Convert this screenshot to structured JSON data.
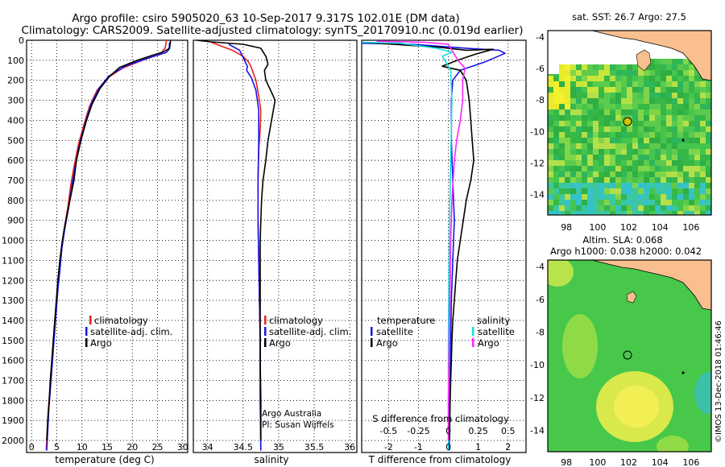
{
  "header": {
    "title_line1": "Argo profile: csiro 5905020_63 10-Sep-2017 9.317S 102.01E (DM data)",
    "title_line2": "Climatology: CARS2009. Satellite-adjusted climatology: synTS_20170910.nc (0.019d earlier)"
  },
  "colors": {
    "climatology": "#e8201c",
    "satellite": "#1414e6",
    "argo": "#000000",
    "sat_salinity": "#16dede",
    "argo_salinity": "#ff22ff",
    "land": "#f9bf8f",
    "sst_green": "#3fbf4a",
    "sla_green": "#47c84a"
  },
  "chart_data": [
    {
      "id": "temperature",
      "type": "line",
      "xlabel": "temperature (deg C)",
      "ylabel": "",
      "xlim": [
        -1,
        31
      ],
      "ylim": [
        2060,
        0
      ],
      "x_ticks": [
        "0",
        "5",
        "10",
        "15",
        "20",
        "25",
        "30"
      ],
      "y_ticks": [
        "0",
        "100",
        "200",
        "300",
        "400",
        "500",
        "600",
        "700",
        "800",
        "900",
        "1000",
        "1100",
        "1200",
        "1300",
        "1400",
        "1500",
        "1600",
        "1700",
        "1800",
        "1900",
        "2000"
      ],
      "legend": [
        "climatology",
        "satellite-adj. clim.",
        "Argo"
      ],
      "series": [
        {
          "key": "climatology",
          "points": [
            [
              26.8,
              0
            ],
            [
              26.5,
              40
            ],
            [
              25.5,
              70
            ],
            [
              22,
              100
            ],
            [
              18,
              140
            ],
            [
              15,
              190
            ],
            [
              13,
              250
            ],
            [
              11.5,
              330
            ],
            [
              10.4,
              420
            ],
            [
              9.3,
              520
            ],
            [
              8.5,
              620
            ],
            [
              7.8,
              720
            ],
            [
              7.1,
              850
            ],
            [
              6.4,
              950
            ],
            [
              5.9,
              1050
            ],
            [
              5.5,
              1150
            ],
            [
              5.1,
              1250
            ],
            [
              4.8,
              1350
            ],
            [
              4.5,
              1450
            ],
            [
              4.2,
              1550
            ],
            [
              3.9,
              1650
            ],
            [
              3.6,
              1750
            ],
            [
              3.3,
              1850
            ],
            [
              3.1,
              1950
            ],
            [
              2.9,
              2050
            ]
          ]
        },
        {
          "key": "satellite",
          "points": [
            [
              27.4,
              10
            ],
            [
              27.3,
              45
            ],
            [
              26.7,
              62
            ],
            [
              23,
              90
            ],
            [
              18.5,
              130
            ],
            [
              15.3,
              180
            ],
            [
              13.4,
              240
            ],
            [
              11.8,
              320
            ],
            [
              10.7,
              410
            ],
            [
              9.6,
              510
            ],
            [
              8.8,
              610
            ],
            [
              8.1,
              710
            ],
            [
              7.4,
              830
            ],
            [
              6.6,
              940
            ],
            [
              6.0,
              1040
            ],
            [
              5.6,
              1150
            ],
            [
              5.2,
              1250
            ],
            [
              4.9,
              1350
            ],
            [
              4.6,
              1450
            ],
            [
              4.3,
              1550
            ],
            [
              4.0,
              1650
            ],
            [
              3.7,
              1750
            ],
            [
              3.4,
              1850
            ],
            [
              3.2,
              1950
            ],
            [
              3.0,
              2050
            ]
          ]
        },
        {
          "key": "argo",
          "points": [
            [
              27.6,
              0
            ],
            [
              27.4,
              40
            ],
            [
              26.2,
              58
            ],
            [
              24,
              75
            ],
            [
              21,
              100
            ],
            [
              17.5,
              135
            ],
            [
              15.5,
              180
            ],
            [
              13.6,
              240
            ],
            [
              12.0,
              320
            ],
            [
              10.9,
              400
            ],
            [
              9.8,
              500
            ],
            [
              8.9,
              600
            ],
            [
              8.4,
              700
            ],
            [
              7.6,
              800
            ],
            [
              6.8,
              900
            ],
            [
              6.1,
              1000
            ],
            [
              5.6,
              1100
            ],
            [
              5.2,
              1200
            ],
            [
              4.9,
              1300
            ],
            [
              4.6,
              1400
            ],
            [
              4.3,
              1500
            ],
            [
              4.0,
              1600
            ],
            [
              3.7,
              1700
            ],
            [
              3.5,
              1800
            ],
            [
              3.2,
              1900
            ],
            [
              3.0,
              2000
            ]
          ]
        }
      ]
    },
    {
      "id": "salinity",
      "type": "line",
      "xlabel": "salinity",
      "xlim": [
        33.8,
        36.1
      ],
      "ylim": [
        2060,
        0
      ],
      "x_ticks": [
        "34",
        "34.5",
        "35",
        "35.5",
        "36"
      ],
      "legend": [
        "climatology",
        "satellite-adj. clim.",
        "Argo"
      ],
      "annotations": [
        "Argo Australia",
        "PI: Susan Wijffels"
      ],
      "series": [
        {
          "key": "climatology",
          "points": [
            [
              34.05,
              10
            ],
            [
              34.2,
              30
            ],
            [
              34.35,
              50
            ],
            [
              34.5,
              80
            ],
            [
              34.58,
              110
            ],
            [
              34.62,
              140
            ],
            [
              34.68,
              200
            ],
            [
              34.72,
              280
            ],
            [
              34.75,
              350
            ],
            [
              34.74,
              450
            ],
            [
              34.72,
              550
            ],
            [
              34.71,
              700
            ],
            [
              34.71,
              900
            ],
            [
              34.72,
              1100
            ],
            [
              34.73,
              1300
            ],
            [
              34.74,
              1500
            ],
            [
              34.74,
              1800
            ],
            [
              34.75,
              2050
            ]
          ]
        },
        {
          "key": "satellite",
          "points": [
            [
              34.3,
              20
            ],
            [
              34.45,
              50
            ],
            [
              34.52,
              100
            ],
            [
              34.56,
              130
            ],
            [
              34.55,
              150
            ],
            [
              34.62,
              190
            ],
            [
              34.68,
              250
            ],
            [
              34.72,
              350
            ],
            [
              34.72,
              500
            ],
            [
              34.71,
              700
            ],
            [
              34.71,
              900
            ],
            [
              34.72,
              1100
            ],
            [
              34.73,
              1300
            ],
            [
              34.74,
              1500
            ],
            [
              34.74,
              1800
            ],
            [
              34.75,
              2050
            ]
          ]
        },
        {
          "key": "argo",
          "points": [
            [
              33.85,
              0
            ],
            [
              34.05,
              8
            ],
            [
              34.5,
              20
            ],
            [
              34.75,
              40
            ],
            [
              34.82,
              80
            ],
            [
              34.85,
              120
            ],
            [
              34.8,
              150
            ],
            [
              34.82,
              200
            ],
            [
              34.9,
              260
            ],
            [
              34.95,
              300
            ],
            [
              34.9,
              400
            ],
            [
              34.85,
              500
            ],
            [
              34.82,
              600
            ],
            [
              34.78,
              700
            ],
            [
              34.76,
              800
            ],
            [
              34.75,
              900
            ],
            [
              34.74,
              1000
            ],
            [
              34.74,
              1200
            ],
            [
              34.74,
              1400
            ],
            [
              34.74,
              1600
            ],
            [
              34.75,
              1800
            ],
            [
              34.75,
              2000
            ]
          ]
        }
      ]
    },
    {
      "id": "difference",
      "type": "line",
      "xlabel": "T difference from climatology",
      "top_xlabel": "S difference from climatology",
      "xlim": [
        -2.9,
        2.6
      ],
      "top_xlim": [
        -0.725,
        0.65
      ],
      "ylim": [
        2060,
        0
      ],
      "x_ticks": [
        "-2",
        "-1",
        "0",
        "1",
        "2"
      ],
      "top_ticks": [
        "-0.5",
        "-0.25",
        "0",
        "0.25",
        "0.5"
      ],
      "legend_groups": [
        {
          "title": "temperature",
          "items": [
            "satellite",
            "Argo"
          ]
        },
        {
          "title": "salinity",
          "items": [
            "satellite",
            "Argo"
          ]
        }
      ],
      "series": [
        {
          "key": "t_satellite",
          "points": [
            [
              -2.9,
              15
            ],
            [
              -1.2,
              20
            ],
            [
              0.6,
              40
            ],
            [
              1.7,
              50
            ],
            [
              1.9,
              65
            ],
            [
              1.2,
              110
            ],
            [
              0.4,
              150
            ],
            [
              0.15,
              200
            ],
            [
              0.1,
              300
            ],
            [
              0.1,
              500
            ],
            [
              0.15,
              700
            ],
            [
              0.2,
              900
            ],
            [
              0.15,
              1100
            ],
            [
              0.1,
              1300
            ],
            [
              0.08,
              1500
            ],
            [
              0.05,
              1800
            ],
            [
              0.03,
              2050
            ]
          ]
        },
        {
          "key": "t_argo",
          "points": [
            [
              -2.9,
              10
            ],
            [
              -0.3,
              35
            ],
            [
              0.6,
              50
            ],
            [
              1.5,
              45
            ],
            [
              0.9,
              70
            ],
            [
              0.3,
              100
            ],
            [
              -0.2,
              130
            ],
            [
              0.4,
              150
            ],
            [
              0.6,
              200
            ],
            [
              0.7,
              300
            ],
            [
              0.75,
              400
            ],
            [
              0.8,
              500
            ],
            [
              0.85,
              600
            ],
            [
              0.75,
              700
            ],
            [
              0.6,
              800
            ],
            [
              0.5,
              900
            ],
            [
              0.4,
              1000
            ],
            [
              0.3,
              1100
            ],
            [
              0.25,
              1200
            ],
            [
              0.2,
              1300
            ],
            [
              0.15,
              1400
            ],
            [
              0.12,
              1500
            ],
            [
              0.1,
              1600
            ],
            [
              0.08,
              1700
            ],
            [
              0.06,
              1800
            ],
            [
              0.05,
              1900
            ],
            [
              0.04,
              2000
            ]
          ]
        },
        {
          "key": "s_satellite",
          "points": [
            [
              -0.725,
              10
            ],
            [
              -0.4,
              15
            ],
            [
              -0.1,
              40
            ],
            [
              0.03,
              60
            ],
            [
              -0.05,
              80
            ],
            [
              0.02,
              150
            ],
            [
              0.03,
              300
            ],
            [
              0.02,
              600
            ],
            [
              0.01,
              900
            ],
            [
              0.005,
              1200
            ],
            [
              0.0,
              1500
            ],
            [
              0.0,
              1800
            ],
            [
              0.0,
              2050
            ]
          ]
        },
        {
          "key": "s_argo",
          "points": [
            [
              -0.6,
              5
            ],
            [
              -0.2,
              10
            ],
            [
              0.0,
              20
            ],
            [
              0.08,
              100
            ],
            [
              0.14,
              140
            ],
            [
              0.12,
              200
            ],
            [
              0.12,
              300
            ],
            [
              0.1,
              400
            ],
            [
              0.07,
              500
            ],
            [
              0.05,
              600
            ],
            [
              0.04,
              700
            ],
            [
              0.03,
              800
            ],
            [
              0.02,
              1000
            ],
            [
              0.015,
              1200
            ],
            [
              0.01,
              1400
            ],
            [
              0.005,
              1600
            ],
            [
              0.0,
              1800
            ],
            [
              0.0,
              2000
            ]
          ]
        }
      ]
    },
    {
      "id": "sst_map",
      "type": "heatmap",
      "title": "sat. SST: 26.7 Argo: 27.5",
      "xlim": [
        96.8,
        107.3
      ],
      "ylim": [
        -15.3,
        -3.6
      ],
      "x_ticks": [
        "98",
        "100",
        "102",
        "104",
        "106"
      ],
      "y_ticks": [
        "-4",
        "-6",
        "-8",
        "-10",
        "-12",
        "-14"
      ],
      "marker": {
        "lon": 102.01,
        "lat": -9.317
      }
    },
    {
      "id": "sla_map",
      "type": "heatmap",
      "title": "Altim. SLA: 0.068",
      "subtitle": "Argo h1000: 0.038 h2000: 0.042",
      "xlim": [
        96.8,
        107.3
      ],
      "ylim": [
        -15.3,
        -3.6
      ],
      "x_ticks": [
        "98",
        "100",
        "102",
        "104",
        "106"
      ],
      "y_ticks": [
        "-4",
        "-6",
        "-8",
        "-10",
        "-12",
        "-14"
      ],
      "marker": {
        "lon": 102.01,
        "lat": -9.317
      }
    }
  ],
  "footer": {
    "credit": "©IMOS 13-Dec-2018 01:46:46"
  }
}
